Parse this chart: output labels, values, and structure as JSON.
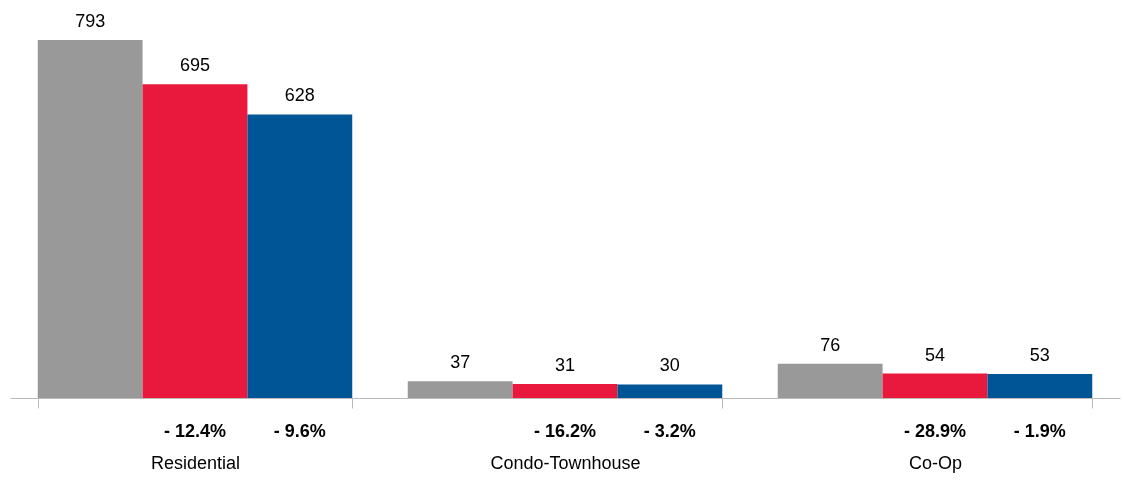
{
  "chart_data": {
    "type": "bar",
    "categories": [
      "Residential",
      "Condo-Townhouse",
      "Co-Op"
    ],
    "series": [
      {
        "color": "#999999",
        "values": [
          793,
          37,
          76
        ]
      },
      {
        "color": "#e8193c",
        "values": [
          695,
          31,
          54
        ]
      },
      {
        "color": "#005596",
        "values": [
          628,
          30,
          53
        ]
      }
    ],
    "data_labels": true,
    "grid": false,
    "legend": false,
    "annotations": [
      "- 12.4%",
      "- 9.6%",
      "- 16.2%",
      "- 3.2%",
      "- 28.9%",
      "- 1.9%"
    ]
  }
}
